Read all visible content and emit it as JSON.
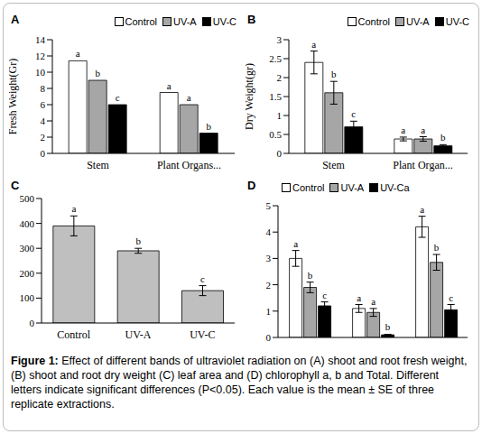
{
  "chart_data": [
    {
      "type": "bar",
      "title": "A",
      "y_label": "Fresh Weight(Gr)",
      "categories": [
        "Stem",
        "Plant Organs..."
      ],
      "ylim": [
        0,
        14
      ],
      "yticks": [
        0,
        2,
        4,
        6,
        8,
        10,
        12,
        14
      ],
      "legend": "top-right",
      "series": [
        {
          "name": "Control",
          "color": "#ffffff",
          "values": [
            11.4,
            7.5
          ],
          "letters": [
            "a",
            "a"
          ]
        },
        {
          "name": "UV-A",
          "color": "#a6a6a6",
          "values": [
            9,
            6
          ],
          "letters": [
            "b",
            "a"
          ]
        },
        {
          "name": "UV-C",
          "color": "#000000",
          "values": [
            6,
            2.5
          ],
          "letters": [
            "c",
            "b"
          ]
        }
      ]
    },
    {
      "type": "bar",
      "title": "B",
      "y_label": "Dry Weight(gr)",
      "categories": [
        "Stem",
        "Plant Organ..."
      ],
      "ylim": [
        0,
        3
      ],
      "yticks": [
        0,
        0.5,
        1,
        1.5,
        2,
        2.5,
        3
      ],
      "legend": "top-right",
      "series": [
        {
          "name": "Control",
          "color": "#ffffff",
          "values": [
            2.4,
            0.38
          ],
          "errors": [
            0.3,
            0.05
          ],
          "letters": [
            "a",
            "a"
          ]
        },
        {
          "name": "UV-A",
          "color": "#a6a6a6",
          "values": [
            1.6,
            0.38
          ],
          "errors": [
            0.3,
            0.06
          ],
          "letters": [
            "b",
            "a"
          ]
        },
        {
          "name": "UV-C",
          "color": "#000000",
          "values": [
            0.7,
            0.2
          ],
          "errors": [
            0.15,
            0.03
          ],
          "letters": [
            "c",
            "b"
          ]
        }
      ]
    },
    {
      "type": "bar",
      "title": "C",
      "categories": [
        "Control",
        "UV-A",
        "UV-C"
      ],
      "ylim": [
        0,
        500
      ],
      "yticks": [
        0,
        100,
        200,
        300,
        400,
        500
      ],
      "color": "#bfbfbf",
      "values": [
        390,
        290,
        130
      ],
      "errors": [
        40,
        10,
        20
      ],
      "letters": [
        "a",
        "b",
        "c"
      ]
    },
    {
      "type": "bar",
      "title": "D",
      "categories": [
        null,
        null,
        null
      ],
      "ylim": [
        0,
        5
      ],
      "yticks": [
        0,
        1,
        2,
        3,
        4,
        5
      ],
      "legend": "top-left",
      "tick_labels": "y",
      "series": [
        {
          "name": "Control",
          "color": "#ffffff",
          "values": [
            3.0,
            1.1,
            4.2
          ],
          "errors": [
            0.3,
            0.15,
            0.4
          ],
          "letters": [
            "a",
            "a",
            "a"
          ]
        },
        {
          "name": "UV-A",
          "color": "#a6a6a6",
          "values": [
            1.9,
            0.95,
            2.85
          ],
          "errors": [
            0.2,
            0.15,
            0.3
          ],
          "letters": [
            "b",
            "a",
            "b"
          ]
        },
        {
          "name": "UV-Ca",
          "color": "#000000",
          "values": [
            1.2,
            0.1,
            1.05
          ],
          "errors": [
            0.15,
            0.02,
            0.2
          ],
          "letters": [
            "c",
            "b",
            "c"
          ]
        }
      ]
    }
  ],
  "caption": {
    "label": "Figure 1:",
    "text": "Effect of different bands of ultraviolet radiation on (A) shoot and root fresh weight, (B) shoot and root dry weight (C) leaf area and (D) chlorophyll a, b and Total. Different letters indicate significant differences (P<0.05). Each value is the mean ± SE of three replicate extractions."
  }
}
